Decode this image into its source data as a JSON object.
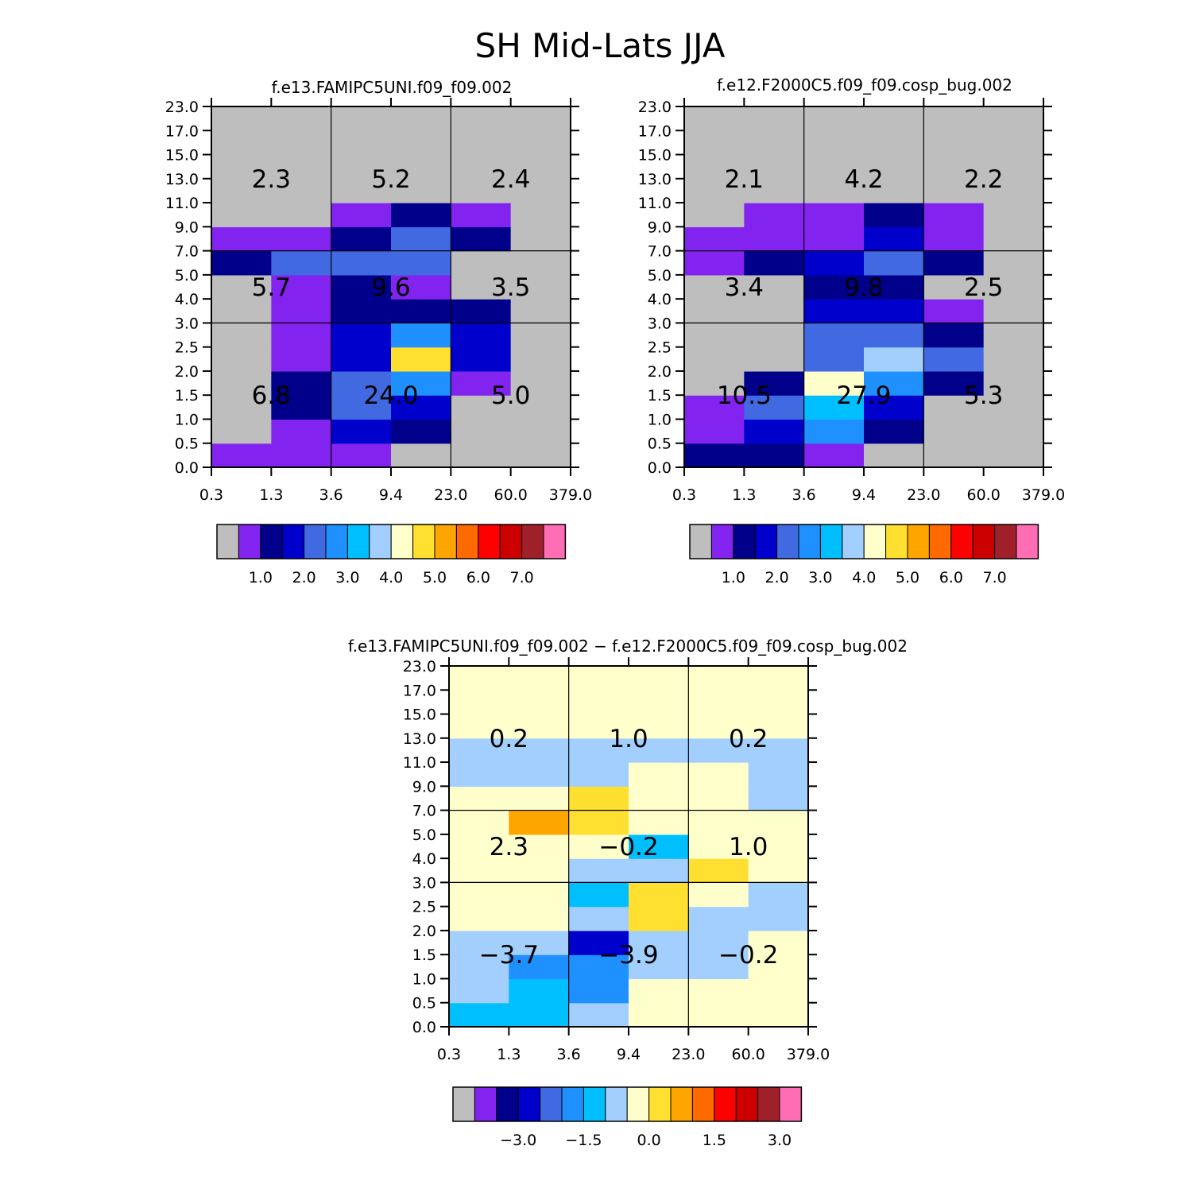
{
  "title": "SH Mid-Lats JJA",
  "colors": {
    "palette": [
      "#bebebe",
      "#8323f0",
      "#00008b",
      "#0000cd",
      "#4169e1",
      "#1e90ff",
      "#00bfff",
      "#a2cffe",
      "#ffffcc",
      "#ffdf2f",
      "#ffa500",
      "#ff6a00",
      "#ff0000",
      "#cd0000",
      "#a0202a",
      "#ff6eb4"
    ]
  },
  "chart_data": [
    {
      "type": "heatmap",
      "name": "top-left",
      "title": "f.e13.FAMIPC5UNI.f09_f09.002",
      "x_tick_labels": [
        "0.3",
        "1.3",
        "3.6",
        "9.4",
        "23.0",
        "60.0",
        "379.0"
      ],
      "y_tick_labels": [
        "0.0",
        "0.5",
        "1.0",
        "1.5",
        "2.0",
        "2.5",
        "3.0",
        "4.0",
        "5.0",
        "7.0",
        "9.0",
        "11.0",
        "13.0",
        "15.0",
        "17.0",
        "23.0"
      ],
      "grid_rows_bottom_to_top": [
        [
          1,
          1,
          1,
          0,
          0,
          0
        ],
        [
          0,
          1,
          3,
          2,
          0,
          0
        ],
        [
          0,
          2,
          4,
          3,
          0,
          0
        ],
        [
          0,
          2,
          4,
          5,
          1,
          0
        ],
        [
          0,
          1,
          3,
          9,
          3,
          0
        ],
        [
          0,
          1,
          3,
          5,
          3,
          0
        ],
        [
          0,
          1,
          2,
          2,
          2,
          0
        ],
        [
          0,
          1,
          2,
          1,
          0,
          0
        ],
        [
          2,
          4,
          4,
          4,
          0,
          0
        ],
        [
          1,
          1,
          2,
          4,
          2,
          0
        ],
        [
          0,
          0,
          1,
          2,
          1,
          0
        ],
        [
          0,
          0,
          0,
          0,
          0,
          0
        ],
        [
          0,
          0,
          0,
          0,
          0,
          0
        ],
        [
          0,
          0,
          0,
          0,
          0,
          0
        ],
        [
          0,
          0,
          0,
          0,
          0,
          0
        ]
      ],
      "block_values": [
        [
          "6.8",
          "24.0",
          "5.0"
        ],
        [
          "5.7",
          "9.6",
          "3.5"
        ],
        [
          "2.3",
          "5.2",
          "2.4"
        ]
      ],
      "colorbar_labels": [
        "1.0",
        "2.0",
        "3.0",
        "4.0",
        "5.0",
        "6.0",
        "7.0"
      ]
    },
    {
      "type": "heatmap",
      "name": "top-right",
      "title": "f.e12.F2000C5.f09_f09.cosp_bug.002",
      "x_tick_labels": [
        "0.3",
        "1.3",
        "3.6",
        "9.4",
        "23.0",
        "60.0",
        "379.0"
      ],
      "y_tick_labels": [
        "0.0",
        "0.5",
        "1.0",
        "1.5",
        "2.0",
        "2.5",
        "3.0",
        "4.0",
        "5.0",
        "7.0",
        "9.0",
        "11.0",
        "13.0",
        "15.0",
        "17.0",
        "23.0"
      ],
      "grid_rows_bottom_to_top": [
        [
          2,
          2,
          1,
          0,
          0,
          0
        ],
        [
          1,
          3,
          5,
          2,
          0,
          0
        ],
        [
          1,
          4,
          6,
          3,
          0,
          0
        ],
        [
          0,
          2,
          8,
          5,
          2,
          0
        ],
        [
          0,
          0,
          4,
          7,
          4,
          0
        ],
        [
          0,
          0,
          4,
          4,
          2,
          0
        ],
        [
          0,
          0,
          3,
          3,
          1,
          0
        ],
        [
          0,
          0,
          2,
          2,
          0,
          0
        ],
        [
          1,
          2,
          3,
          4,
          2,
          0
        ],
        [
          1,
          1,
          1,
          3,
          1,
          0
        ],
        [
          0,
          1,
          1,
          2,
          1,
          0
        ],
        [
          0,
          0,
          0,
          0,
          0,
          0
        ],
        [
          0,
          0,
          0,
          0,
          0,
          0
        ],
        [
          0,
          0,
          0,
          0,
          0,
          0
        ],
        [
          0,
          0,
          0,
          0,
          0,
          0
        ]
      ],
      "block_values": [
        [
          "10.5",
          "27.9",
          "5.3"
        ],
        [
          "3.4",
          "9.8",
          "2.5"
        ],
        [
          "2.1",
          "4.2",
          "2.2"
        ]
      ],
      "colorbar_labels": [
        "1.0",
        "2.0",
        "3.0",
        "4.0",
        "5.0",
        "6.0",
        "7.0"
      ]
    },
    {
      "type": "heatmap",
      "name": "bottom-difference",
      "title": "f.e13.FAMIPC5UNI.f09_f09.002 − f.e12.F2000C5.f09_f09.cosp_bug.002",
      "x_tick_labels": [
        "0.3",
        "1.3",
        "3.6",
        "9.4",
        "23.0",
        "60.0",
        "379.0"
      ],
      "y_tick_labels": [
        "0.0",
        "0.5",
        "1.0",
        "1.5",
        "2.0",
        "2.5",
        "3.0",
        "4.0",
        "5.0",
        "7.0",
        "9.0",
        "11.0",
        "13.0",
        "15.0",
        "17.0",
        "23.0"
      ],
      "grid_rows_bottom_to_top": [
        [
          6,
          6,
          7,
          8,
          8,
          8
        ],
        [
          7,
          6,
          5,
          8,
          8,
          8
        ],
        [
          7,
          5,
          5,
          7,
          7,
          8
        ],
        [
          7,
          7,
          3,
          7,
          7,
          8
        ],
        [
          8,
          8,
          7,
          9,
          7,
          7
        ],
        [
          8,
          8,
          6,
          9,
          8,
          7
        ],
        [
          8,
          8,
          7,
          7,
          9,
          8
        ],
        [
          8,
          8,
          8,
          6,
          8,
          8
        ],
        [
          8,
          10,
          9,
          8,
          8,
          8
        ],
        [
          8,
          8,
          9,
          8,
          8,
          7
        ],
        [
          7,
          7,
          7,
          8,
          8,
          7
        ],
        [
          7,
          7,
          7,
          7,
          7,
          7
        ],
        [
          8,
          8,
          8,
          8,
          8,
          8
        ],
        [
          8,
          8,
          8,
          8,
          8,
          8
        ],
        [
          8,
          8,
          8,
          8,
          8,
          8
        ]
      ],
      "block_values": [
        [
          "−3.7",
          "−3.9",
          "−0.2"
        ],
        [
          "2.3",
          "−0.2",
          "1.0"
        ],
        [
          "0.2",
          "1.0",
          "0.2"
        ]
      ],
      "colorbar_labels": [
        "−3.0",
        "−1.5",
        "0.0",
        "1.5",
        "3.0"
      ]
    }
  ]
}
